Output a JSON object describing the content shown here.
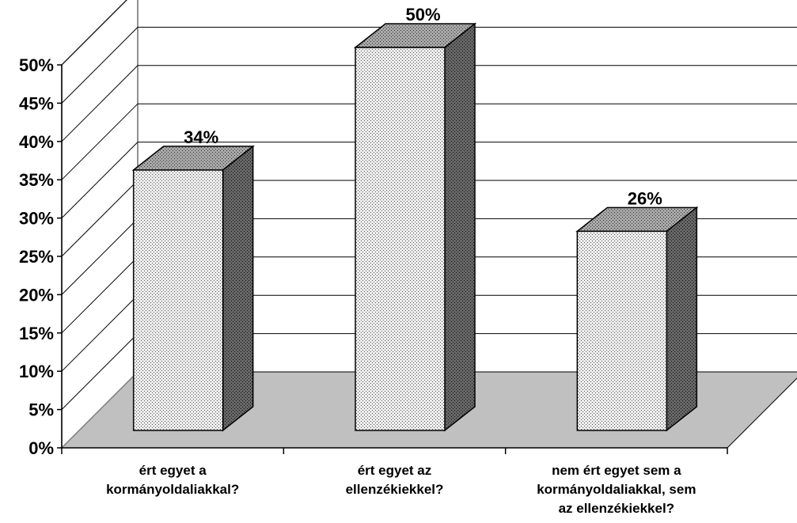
{
  "chart_data": {
    "type": "bar",
    "style": "3d-column",
    "categories": [
      [
        "ért egyet a",
        "kormányoldaliakkal?"
      ],
      [
        "ért egyet az",
        "ellenzékiekkel?"
      ],
      [
        "nem ért egyet sem a",
        "kormányoldaliakkal, sem",
        "az ellenzékiekkel?"
      ]
    ],
    "values": [
      34,
      50,
      26
    ],
    "data_labels": [
      "34%",
      "50%",
      "26%"
    ],
    "ylim": [
      0,
      50
    ],
    "yticks": [
      "0%",
      "5%",
      "10%",
      "15%",
      "20%",
      "25%",
      "30%",
      "35%",
      "40%",
      "45%",
      "50%"
    ],
    "grid": true,
    "legend": "none",
    "colors": {
      "floor": "#c0c0c0",
      "grid": "#000000",
      "bar_front": "#e6e6e6",
      "bar_top": "#9a9a9a",
      "bar_side": "#555555"
    }
  }
}
